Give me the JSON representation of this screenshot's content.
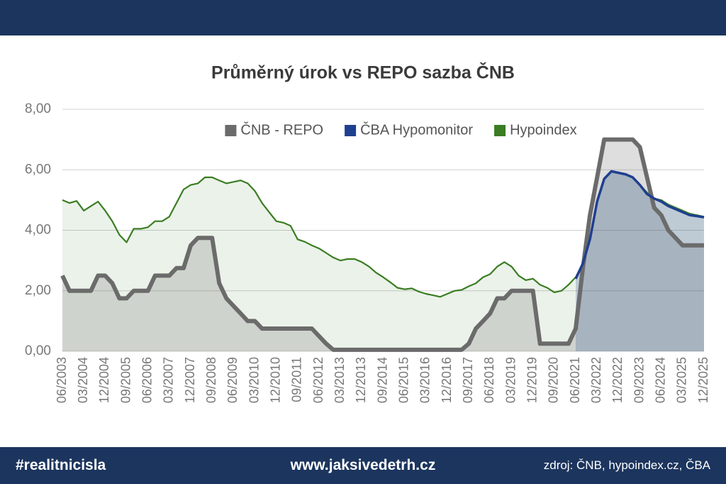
{
  "chart_data": {
    "type": "line",
    "title": "Průměrný úrok vs REPO sazba ČNB",
    "categories": [
      "06/2003",
      null,
      null,
      "03/2004",
      null,
      null,
      "12/2004",
      null,
      null,
      "09/2005",
      null,
      null,
      "06/2006",
      null,
      null,
      "03/2007",
      null,
      null,
      "12/2007",
      null,
      null,
      "09/2008",
      null,
      null,
      "06/2009",
      null,
      null,
      "03/2010",
      null,
      null,
      "12/2010",
      null,
      null,
      "09/2011",
      null,
      null,
      "06/2012",
      null,
      null,
      "03/2013",
      null,
      null,
      "12/2013",
      null,
      null,
      "09/2014",
      null,
      null,
      "06/2015",
      null,
      null,
      "03/2016",
      null,
      null,
      "12/2016",
      null,
      null,
      "09/2017",
      null,
      null,
      "06/2018",
      null,
      null,
      "03/2019",
      null,
      null,
      "12/2019",
      null,
      null,
      "09/2020",
      null,
      null,
      "06/2021",
      null,
      null,
      "03/2022",
      null,
      null,
      "12/2022",
      null,
      null,
      "09/2023",
      null,
      null,
      "06/2024",
      null,
      null,
      "03/2025",
      null,
      null,
      "12/2025"
    ],
    "series": [
      {
        "name": "ČNB - REPO",
        "color": "#6b6b6b",
        "values": [
          2.5,
          2.0,
          2.0,
          2.0,
          2.0,
          2.5,
          2.5,
          2.25,
          1.75,
          1.75,
          2.0,
          2.0,
          2.0,
          2.5,
          2.5,
          2.5,
          2.75,
          2.75,
          3.5,
          3.75,
          3.75,
          3.75,
          2.25,
          1.75,
          1.5,
          1.25,
          1.0,
          1.0,
          0.75,
          0.75,
          0.75,
          0.75,
          0.75,
          0.75,
          0.75,
          0.75,
          0.5,
          0.25,
          0.05,
          0.05,
          0.05,
          0.05,
          0.05,
          0.05,
          0.05,
          0.05,
          0.05,
          0.05,
          0.05,
          0.05,
          0.05,
          0.05,
          0.05,
          0.05,
          0.05,
          0.05,
          0.05,
          0.25,
          0.75,
          1.0,
          1.25,
          1.75,
          1.75,
          2.0,
          2.0,
          2.0,
          2.0,
          0.25,
          0.25,
          0.25,
          0.25,
          0.25,
          0.75,
          2.75,
          4.5,
          5.75,
          7.0,
          7.0,
          7.0,
          7.0,
          7.0,
          6.75,
          5.75,
          4.75,
          4.5,
          4.0,
          3.75,
          3.5,
          3.5,
          3.5,
          3.5
        ]
      },
      {
        "name": "ČBA Hypomonitor",
        "color": "#1f3f8f",
        "values": [
          null,
          null,
          null,
          null,
          null,
          null,
          null,
          null,
          null,
          null,
          null,
          null,
          null,
          null,
          null,
          null,
          null,
          null,
          null,
          null,
          null,
          null,
          null,
          null,
          null,
          null,
          null,
          null,
          null,
          null,
          null,
          null,
          null,
          null,
          null,
          null,
          null,
          null,
          null,
          null,
          null,
          null,
          null,
          null,
          null,
          null,
          null,
          null,
          null,
          null,
          null,
          null,
          null,
          null,
          null,
          null,
          null,
          null,
          null,
          null,
          null,
          null,
          null,
          null,
          null,
          null,
          null,
          null,
          null,
          null,
          null,
          null,
          2.4,
          2.9,
          3.7,
          4.95,
          5.7,
          5.95,
          5.9,
          5.85,
          5.75,
          5.5,
          5.2,
          5.05,
          4.95,
          4.8,
          4.7,
          4.6,
          4.5,
          4.47,
          4.43
        ]
      },
      {
        "name": "Hypoindex",
        "color": "#3a7d23",
        "values": [
          5.0,
          4.9,
          4.97,
          4.65,
          4.8,
          4.95,
          4.65,
          4.3,
          3.85,
          3.6,
          4.05,
          4.05,
          4.1,
          4.3,
          4.3,
          4.45,
          4.9,
          5.35,
          5.5,
          5.55,
          5.75,
          5.75,
          5.65,
          5.55,
          5.6,
          5.65,
          5.55,
          5.3,
          4.9,
          4.6,
          4.3,
          4.25,
          4.15,
          3.7,
          3.62,
          3.5,
          3.4,
          3.25,
          3.1,
          3.0,
          3.05,
          3.05,
          2.95,
          2.8,
          2.6,
          2.45,
          2.28,
          2.1,
          2.05,
          2.08,
          1.97,
          1.9,
          1.85,
          1.8,
          1.9,
          2.0,
          2.03,
          2.15,
          2.25,
          2.45,
          2.55,
          2.8,
          2.95,
          2.8,
          2.5,
          2.35,
          2.4,
          2.2,
          2.1,
          1.95,
          2.0,
          2.2,
          2.45,
          2.9,
          3.7,
          5.0,
          5.7,
          5.95,
          5.9,
          5.85,
          5.75,
          5.5,
          5.25,
          5.05,
          5.0,
          4.85,
          4.75,
          4.65,
          4.55,
          4.5,
          4.45
        ]
      }
    ],
    "ylim": [
      0,
      8
    ],
    "yticks": [
      {
        "value": 0,
        "label": "0,00"
      },
      {
        "value": 2,
        "label": "2,00"
      },
      {
        "value": 4,
        "label": "4,00"
      },
      {
        "value": 6,
        "label": "6,00"
      },
      {
        "value": 8,
        "label": "8,00"
      }
    ],
    "grid": true,
    "legend": "top",
    "area": true
  },
  "footer": {
    "hashtag": "#realitnicisla",
    "website": "www.jaksivedetrh.cz",
    "source": "zdroj: ČNB, hypoindex.cz, ČBA"
  }
}
